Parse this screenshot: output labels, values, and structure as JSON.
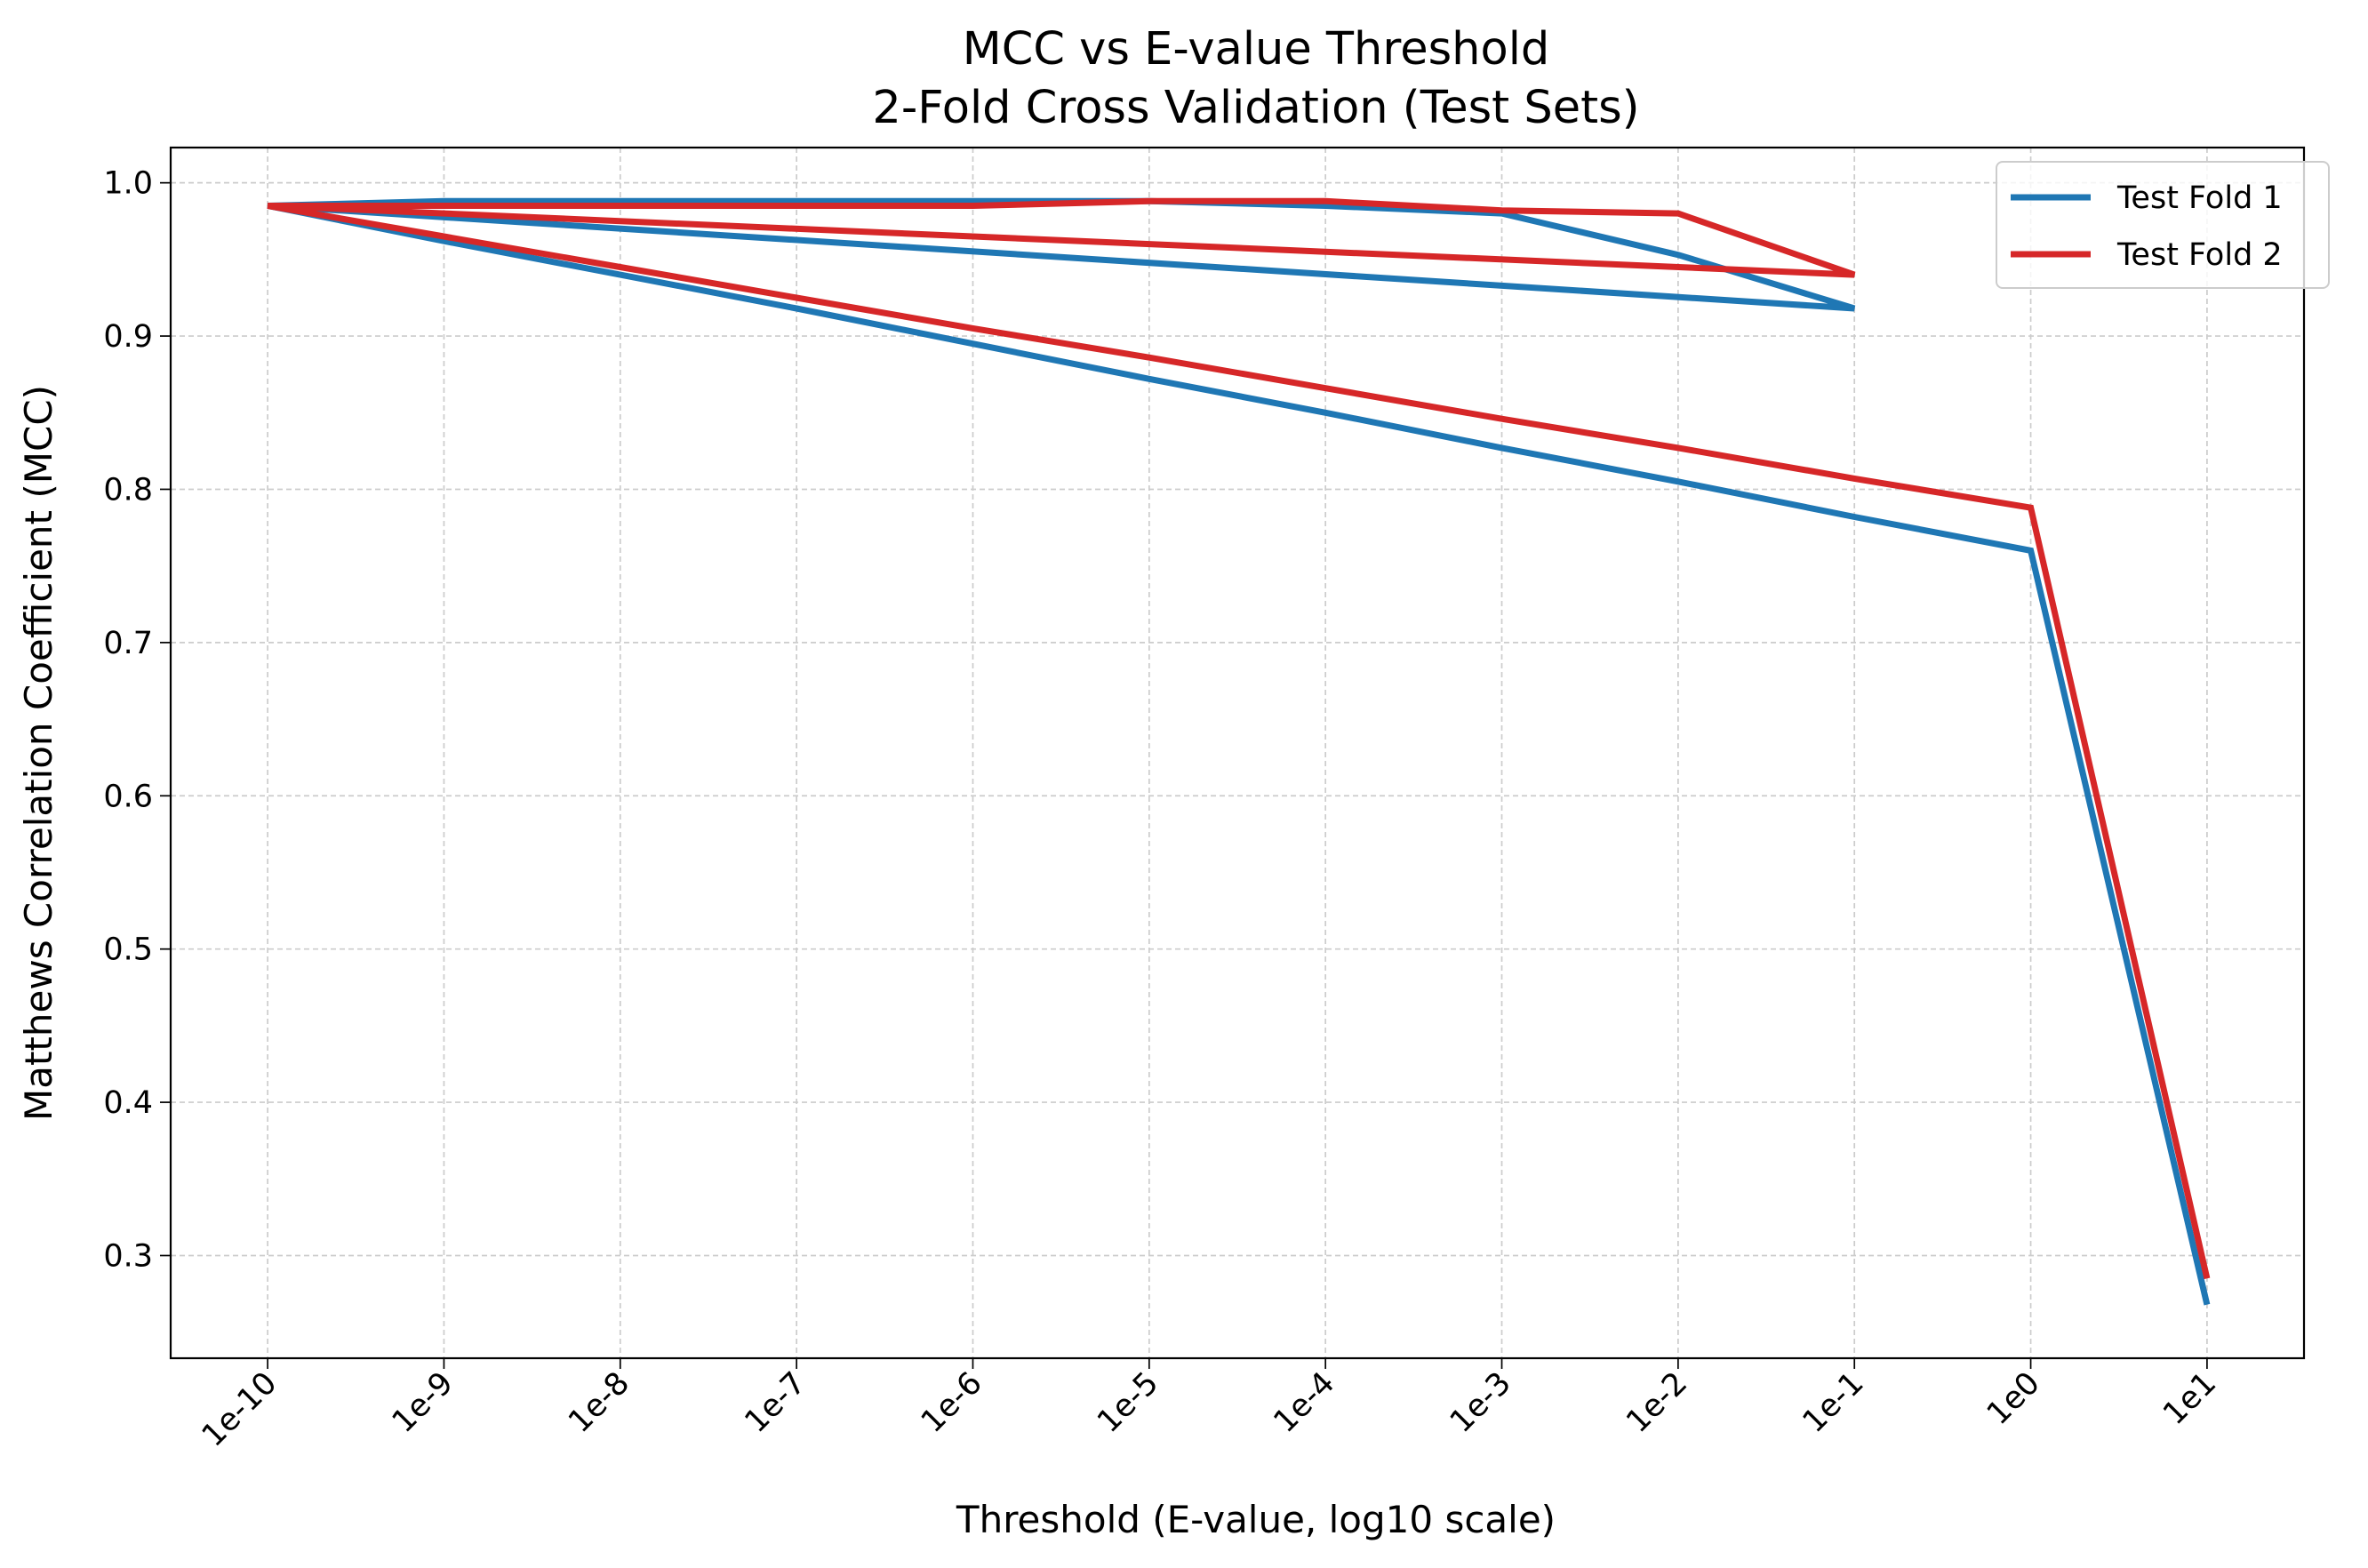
{
  "chart_data": {
    "type": "line",
    "title": "MCC vs E-value Threshold",
    "subtitle": "2-Fold Cross Validation (Test Sets)",
    "xlabel": "Threshold (E-value, log10 scale)",
    "ylabel": "Matthews Correlation Coefficient (MCC)",
    "x_tick_labels": [
      "1e-10",
      "1e-9",
      "1e-8",
      "1e-7",
      "1e-6",
      "1e-5",
      "1e-4",
      "1e-3",
      "1e-2",
      "1e-1",
      "1e0",
      "1e1"
    ],
    "x_ticks": [
      -10,
      -9,
      -8,
      -7,
      -6,
      -5,
      -4,
      -3,
      -2,
      -1,
      0,
      1
    ],
    "y_ticks": [
      0.3,
      0.4,
      0.5,
      0.6,
      0.7,
      0.8,
      0.9,
      1.0
    ],
    "y_tick_labels": [
      "0.3",
      "0.4",
      "0.5",
      "0.6",
      "0.7",
      "0.8",
      "0.9",
      "1.0"
    ],
    "xlim": [
      -10.55,
      1.55
    ],
    "ylim": [
      0.233,
      1.023
    ],
    "grid": true,
    "legend_position": "top-right",
    "series": [
      {
        "name": "Test Fold 1",
        "color": "#1f77b4",
        "x": [
          -10,
          -9,
          -8,
          -7,
          -6,
          -5,
          -4,
          -3,
          -2,
          -1,
          -10,
          -9,
          -8,
          -7,
          -6,
          -5,
          -4,
          -3,
          -2,
          -1,
          0,
          1
        ],
        "y": [
          0.985,
          0.988,
          0.988,
          0.988,
          0.988,
          0.988,
          0.985,
          0.98,
          0.953,
          0.918,
          0.985,
          0.962,
          0.94,
          0.918,
          0.895,
          0.872,
          0.85,
          0.827,
          0.805,
          0.782,
          0.76,
          0.268
        ]
      },
      {
        "name": "Test Fold 2",
        "color": "#d62728",
        "x": [
          -10,
          -9,
          -8,
          -7,
          -6,
          -5,
          -4,
          -3,
          -2,
          -1,
          -10,
          -9,
          -8,
          -7,
          -6,
          -5,
          -4,
          -3,
          -2,
          -1,
          0,
          1
        ],
        "y": [
          0.985,
          0.985,
          0.985,
          0.985,
          0.985,
          0.988,
          0.988,
          0.982,
          0.98,
          0.94,
          0.985,
          0.965,
          0.945,
          0.925,
          0.905,
          0.886,
          0.866,
          0.846,
          0.827,
          0.807,
          0.788,
          0.285
        ]
      }
    ]
  }
}
